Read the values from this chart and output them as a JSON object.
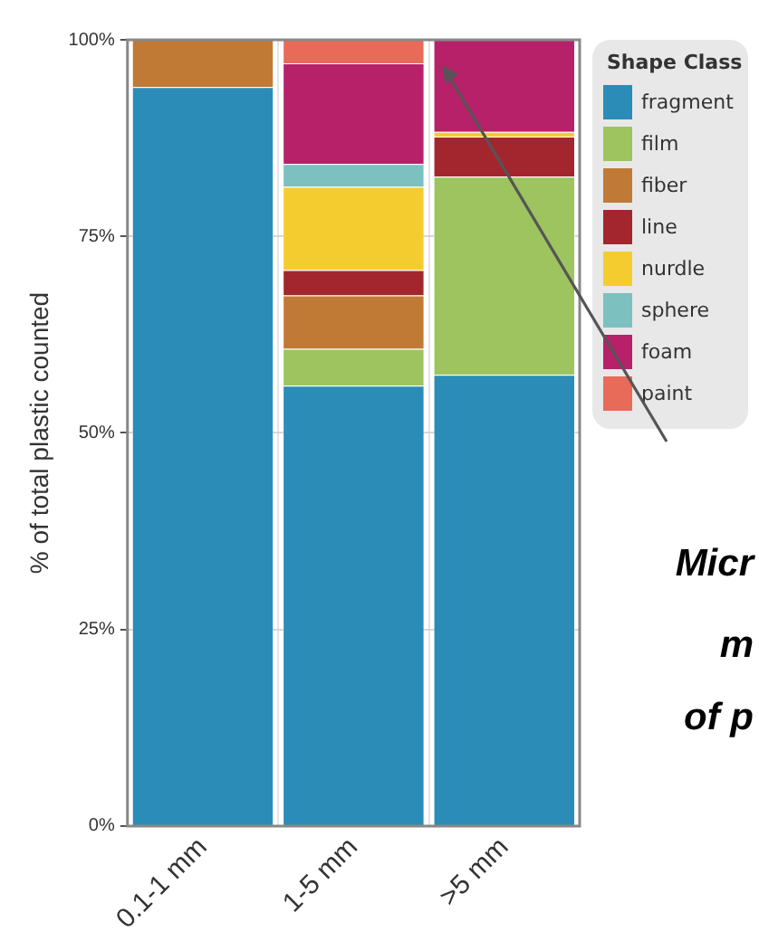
{
  "chart_data": {
    "type": "bar",
    "stacked": true,
    "ylabel": "% of total plastic counted",
    "legend_title": "Shape Class",
    "legend": "right",
    "grid": true,
    "categories": [
      "0.1-1 mm",
      "1-5 mm",
      ">5 mm"
    ],
    "ylim": [
      0,
      100
    ],
    "yticks": [
      {
        "value": 0,
        "label": "0%"
      },
      {
        "value": 25,
        "label": "25%"
      },
      {
        "value": 50,
        "label": "50%"
      },
      {
        "value": 75,
        "label": "75%"
      },
      {
        "value": 100,
        "label": "100%"
      }
    ],
    "series": [
      {
        "name": "fragment",
        "color": "#2b8cb8",
        "values": [
          94,
          56,
          57.4
        ]
      },
      {
        "name": "film",
        "color": "#9dc45f",
        "values": [
          0,
          4.7,
          25.2
        ]
      },
      {
        "name": "fiber",
        "color": "#c07a35",
        "values": [
          6,
          6.8,
          0
        ]
      },
      {
        "name": "line",
        "color": "#a3262f",
        "values": [
          0,
          3.2,
          5.1
        ]
      },
      {
        "name": "nurdle",
        "color": "#f5cc30",
        "values": [
          0,
          10.6,
          0.6
        ]
      },
      {
        "name": "sphere",
        "color": "#7cc0c0",
        "values": [
          0,
          2.9,
          0
        ]
      },
      {
        "name": "foam",
        "color": "#b7216a",
        "values": [
          0,
          12.8,
          11.7
        ]
      },
      {
        "name": "paint",
        "color": "#e86b5a",
        "values": [
          0,
          3,
          0
        ]
      }
    ],
    "annotations": [
      "Micr",
      "m",
      "of p"
    ]
  }
}
